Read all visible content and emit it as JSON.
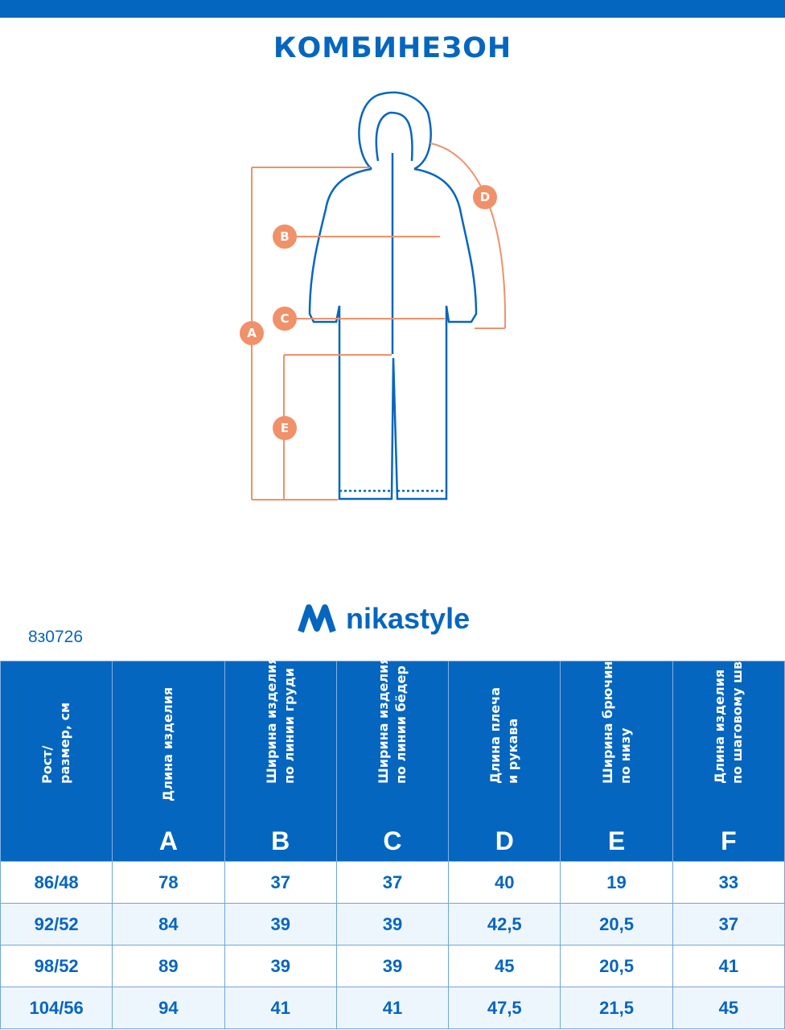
{
  "title": "КОМБИНЕЗОН",
  "brand": "nikastyle",
  "article": "8з0726",
  "colors": {
    "primary": "#0566c0",
    "accent": "#f0916a"
  },
  "diagram_labels": [
    "A",
    "B",
    "C",
    "D",
    "E"
  ],
  "table": {
    "headers": [
      {
        "text": "Рост/\nразмер, см",
        "letter": ""
      },
      {
        "text": "Длина изделия",
        "letter": "A"
      },
      {
        "text": "Ширина изделия\nпо линии груди",
        "letter": "B"
      },
      {
        "text": "Ширина изделия\nпо линии бёдер",
        "letter": "C"
      },
      {
        "text": "Длина плеча\nи рукава",
        "letter": "D"
      },
      {
        "text": "Ширина брючины\nпо низу",
        "letter": "E"
      },
      {
        "text": "Длина изделия\nпо шаговому шву",
        "letter": "F"
      }
    ],
    "rows": [
      [
        "86/48",
        "78",
        "37",
        "37",
        "40",
        "19",
        "33"
      ],
      [
        "92/52",
        "84",
        "39",
        "39",
        "42,5",
        "20,5",
        "37"
      ],
      [
        "98/52",
        "89",
        "39",
        "39",
        "45",
        "20,5",
        "41"
      ],
      [
        "104/56",
        "94",
        "41",
        "41",
        "47,5",
        "21,5",
        "45"
      ]
    ]
  }
}
